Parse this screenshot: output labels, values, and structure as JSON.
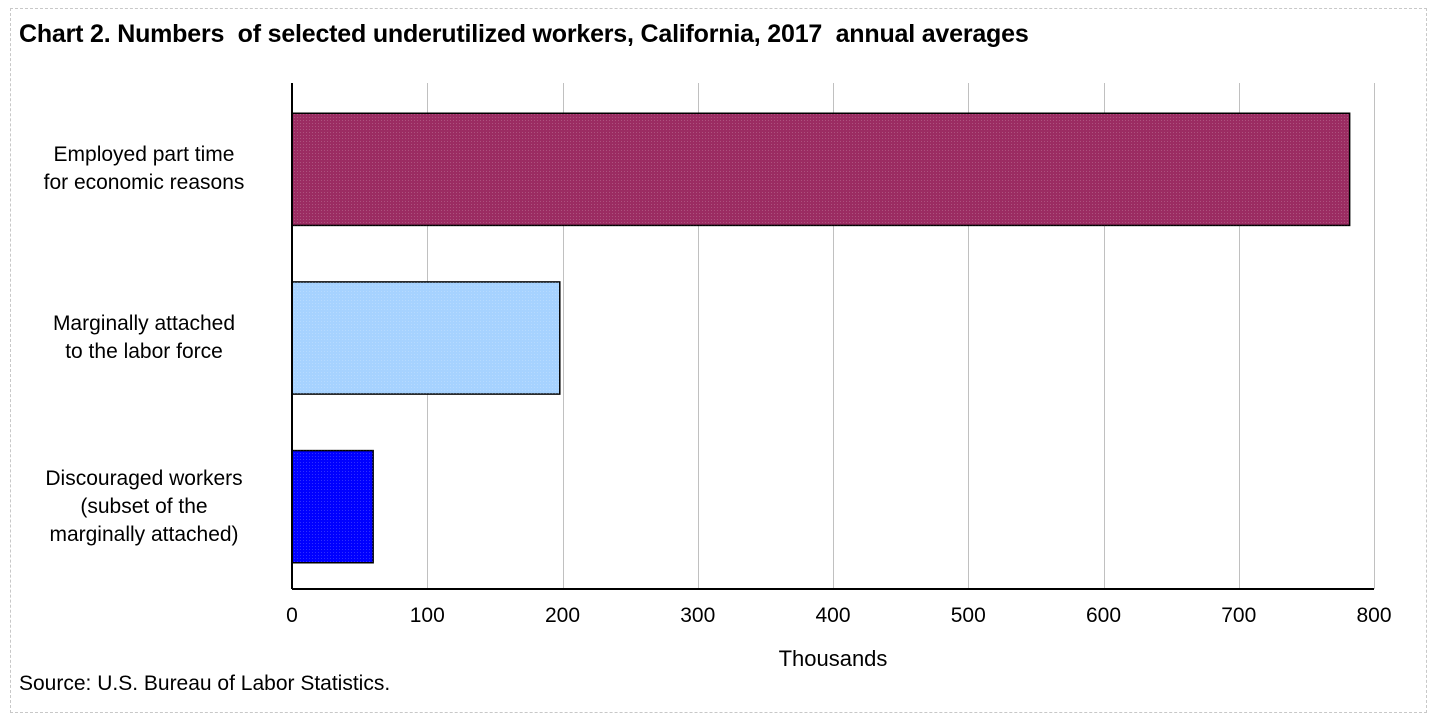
{
  "chart_data": {
    "type": "bar",
    "orientation": "horizontal",
    "title": "Chart 2. Numbers  of selected underutilized workers, California, 2017  annual averages",
    "xlabel": "Thousands",
    "ylabel": "",
    "categories": [
      "Employed part time\nfor economic reasons",
      "Marginally attached\nto the labor force",
      "Discouraged workers\n(subset of the\nmarginally attached)"
    ],
    "values": [
      782,
      198,
      60
    ],
    "bar_colors": [
      "#9b2c62",
      "#a6d2ff",
      "#0000ff"
    ],
    "xlim": [
      0,
      800
    ],
    "x_ticks": [
      0,
      100,
      200,
      300,
      400,
      500,
      600,
      700,
      800
    ],
    "tick_labels": [
      "0",
      "100",
      "200",
      "300",
      "400",
      "500",
      "600",
      "700",
      "800"
    ],
    "grid": "vertical",
    "source": "Source: U.S. Bureau of Labor Statistics."
  }
}
